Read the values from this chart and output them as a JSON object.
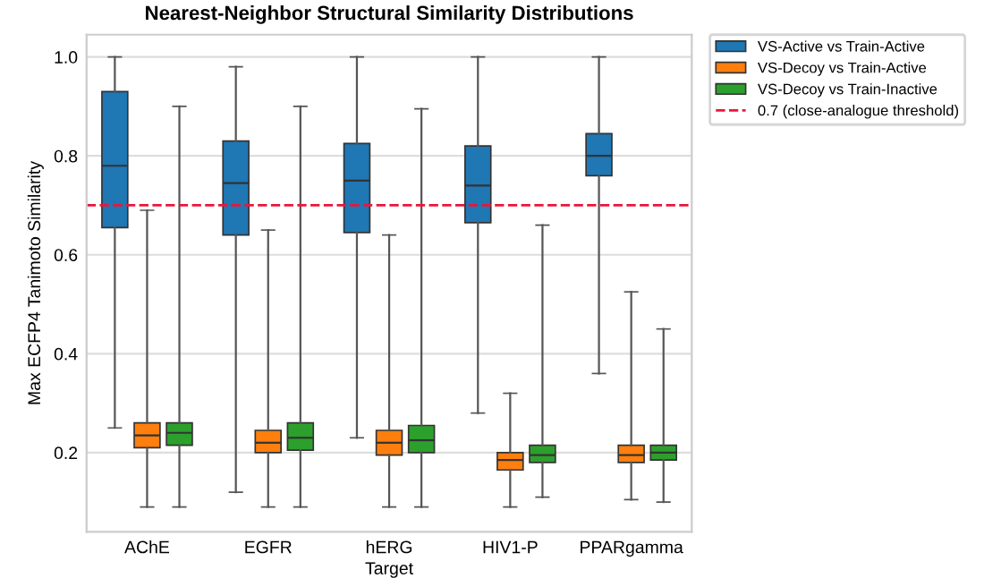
{
  "chart_data": {
    "type": "box",
    "title": "Nearest-Neighbor Structural Similarity Distributions",
    "xlabel": "Target",
    "ylabel": "Max ECFP4 Tanimoto Similarity",
    "categories": [
      "AChE",
      "EGFR",
      "hERG",
      "HIV1-P",
      "PPARgamma"
    ],
    "series": [
      {
        "name": "VS-Active vs Train-Active",
        "color": "#1f77b4",
        "boxes": [
          {
            "low": 0.25,
            "q1": 0.655,
            "median": 0.78,
            "q3": 0.93,
            "high": 1.0
          },
          {
            "low": 0.12,
            "q1": 0.64,
            "median": 0.745,
            "q3": 0.83,
            "high": 0.98
          },
          {
            "low": 0.23,
            "q1": 0.645,
            "median": 0.75,
            "q3": 0.825,
            "high": 1.0
          },
          {
            "low": 0.28,
            "q1": 0.665,
            "median": 0.74,
            "q3": 0.82,
            "high": 1.0
          },
          {
            "low": 0.36,
            "q1": 0.76,
            "median": 0.8,
            "q3": 0.845,
            "high": 1.0
          }
        ]
      },
      {
        "name": "VS-Decoy vs Train-Active",
        "color": "#ff7f0e",
        "boxes": [
          {
            "low": 0.09,
            "q1": 0.21,
            "median": 0.235,
            "q3": 0.26,
            "high": 0.69
          },
          {
            "low": 0.09,
            "q1": 0.2,
            "median": 0.22,
            "q3": 0.245,
            "high": 0.65
          },
          {
            "low": 0.09,
            "q1": 0.195,
            "median": 0.22,
            "q3": 0.245,
            "high": 0.64
          },
          {
            "low": 0.09,
            "q1": 0.165,
            "median": 0.185,
            "q3": 0.2,
            "high": 0.32
          },
          {
            "low": 0.105,
            "q1": 0.18,
            "median": 0.195,
            "q3": 0.215,
            "high": 0.525
          }
        ]
      },
      {
        "name": "VS-Decoy vs Train-Inactive",
        "color": "#2ca02c",
        "boxes": [
          {
            "low": 0.09,
            "q1": 0.215,
            "median": 0.24,
            "q3": 0.26,
            "high": 0.9
          },
          {
            "low": 0.09,
            "q1": 0.205,
            "median": 0.23,
            "q3": 0.26,
            "high": 0.9
          },
          {
            "low": 0.09,
            "q1": 0.2,
            "median": 0.225,
            "q3": 0.255,
            "high": 0.895
          },
          {
            "low": 0.11,
            "q1": 0.18,
            "median": 0.195,
            "q3": 0.215,
            "high": 0.66
          },
          {
            "low": 0.1,
            "q1": 0.185,
            "median": 0.2,
            "q3": 0.215,
            "high": 0.45
          }
        ]
      }
    ],
    "ref_lines": [
      {
        "axis": "y",
        "value": 0.7,
        "label": "0.7 (close-analogue threshold)",
        "color": "#e8173a",
        "line_style": "dashed"
      }
    ],
    "ylim": [
      0.04,
      1.045
    ],
    "yticks": [
      0.2,
      0.4,
      0.6,
      0.8,
      {
        "value": 1.0,
        "label": "1.0"
      }
    ],
    "grid": "y",
    "legend": "top right"
  }
}
